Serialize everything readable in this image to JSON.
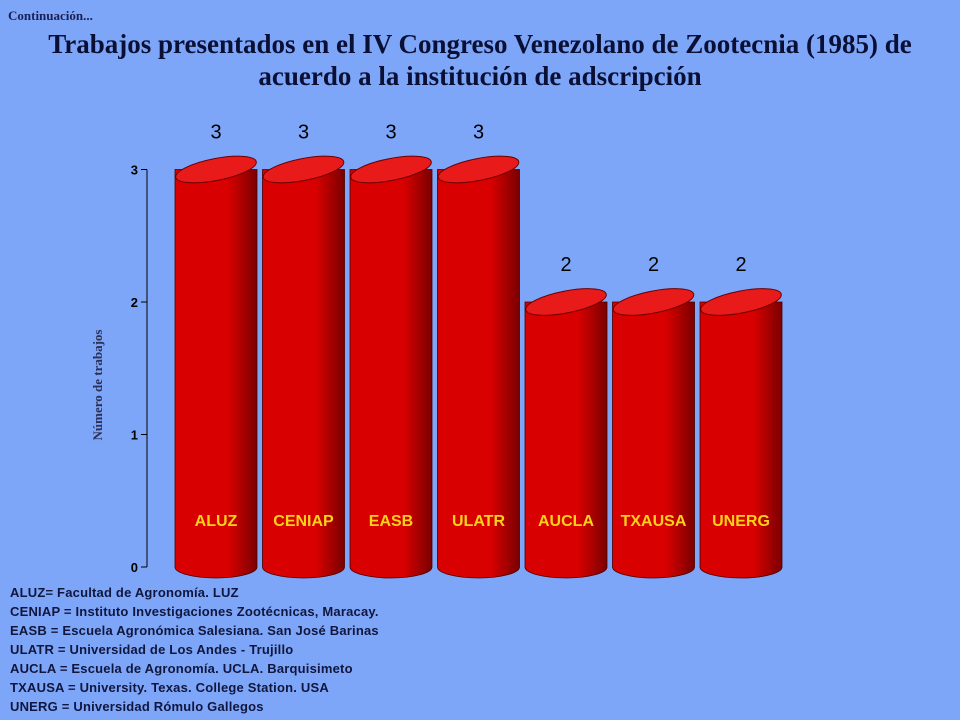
{
  "header": {
    "continuation": "Continuación...",
    "title_line1": "Trabajos presentados en el IV Congreso Venezolano de Zootecnia (1985) de",
    "title_line2": "acuerdo a la institución de adscripción"
  },
  "colors": {
    "background": "#7ea6f8",
    "bar_fill": "#d80000",
    "bar_top": "#e81a1a",
    "bar_shadow": "#7a0000",
    "category_label": "#ffd21a"
  },
  "chart_data": {
    "type": "bar",
    "title": "Trabajos presentados en el IV Congreso Venezolano de Zootecnia (1985) de acuerdo a la institución de adscripción",
    "ylabel": "Número de trabajos",
    "xlabel": "",
    "categories": [
      "ALUZ",
      "CENIAP",
      "EASB",
      "ULATR",
      "AUCLA",
      "TXAUSA",
      "UNERG"
    ],
    "values": [
      3,
      3,
      3,
      3,
      2,
      2,
      2
    ],
    "data_labels": [
      "3",
      "3",
      "3",
      "3",
      "2",
      "2",
      "2"
    ],
    "ylim": [
      0,
      3
    ],
    "yticks": [
      0,
      1,
      2,
      3
    ],
    "grid": false,
    "style": "3d-cylinder"
  },
  "legend": {
    "items": [
      "ALUZ= Facultad de Agronomía.  LUZ",
      "CENIAP = Instituto Investigaciones Zootécnicas, Maracay.",
      "EASB = Escuela Agronómica Salesiana. San José Barinas",
      "ULATR = Universidad de Los Andes - Trujillo",
      "AUCLA = Escuela de Agronomía. UCLA. Barquisimeto",
      "TXAUSA = University. Texas. College Station. USA",
      "UNERG = Universidad Rómulo Gallegos"
    ]
  }
}
